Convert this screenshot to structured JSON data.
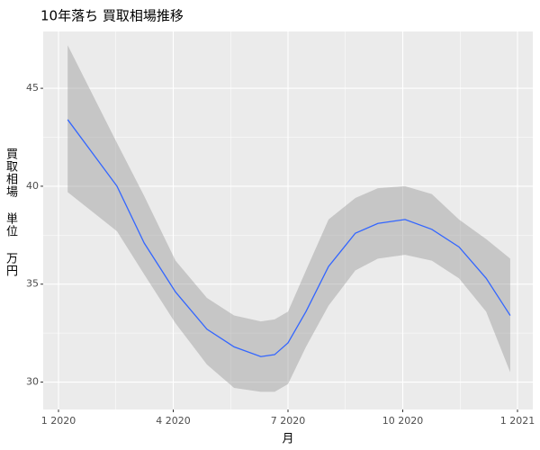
{
  "chart_data": {
    "type": "line",
    "title": "10年落ち 買取相場推移",
    "x_label": "月",
    "y_label": "買取相場 単位 万円",
    "x": [
      1.24,
      2.53,
      3.24,
      4.06,
      4.88,
      5.59,
      6.29,
      6.65,
      7.0,
      7.47,
      8.06,
      8.76,
      9.35,
      10.06,
      10.76,
      11.47,
      12.18,
      12.81
    ],
    "series": [
      {
        "color": "#3366ff",
        "values": [
          43.4,
          40.0,
          37.1,
          34.6,
          32.7,
          31.8,
          31.3,
          31.4,
          32.0,
          33.6,
          35.9,
          37.6,
          38.1,
          38.3,
          37.8,
          36.9,
          35.3,
          33.4
        ],
        "upper": [
          47.2,
          42.2,
          39.5,
          36.2,
          34.3,
          33.4,
          33.1,
          33.2,
          33.6,
          35.7,
          38.3,
          39.4,
          39.9,
          40.0,
          39.6,
          38.3,
          37.3,
          36.3
        ],
        "lower": [
          39.7,
          37.7,
          35.5,
          33.0,
          30.9,
          29.7,
          29.5,
          29.5,
          29.9,
          31.8,
          33.9,
          35.7,
          36.3,
          36.5,
          36.2,
          35.3,
          33.6,
          30.5
        ],
        "band_color": "#999999"
      }
    ],
    "xlim": [
      0.6,
      13.4
    ],
    "xticks": [
      {
        "value": 1,
        "label": "1 2020"
      },
      {
        "value": 4,
        "label": "4 2020"
      },
      {
        "value": 7,
        "label": "7 2020"
      },
      {
        "value": 10,
        "label": "10 2020"
      },
      {
        "value": 13,
        "label": "1 2021"
      }
    ],
    "ylim": [
      28.6,
      47.9
    ],
    "yticks": [
      30,
      35,
      40,
      45
    ],
    "grid": true
  }
}
